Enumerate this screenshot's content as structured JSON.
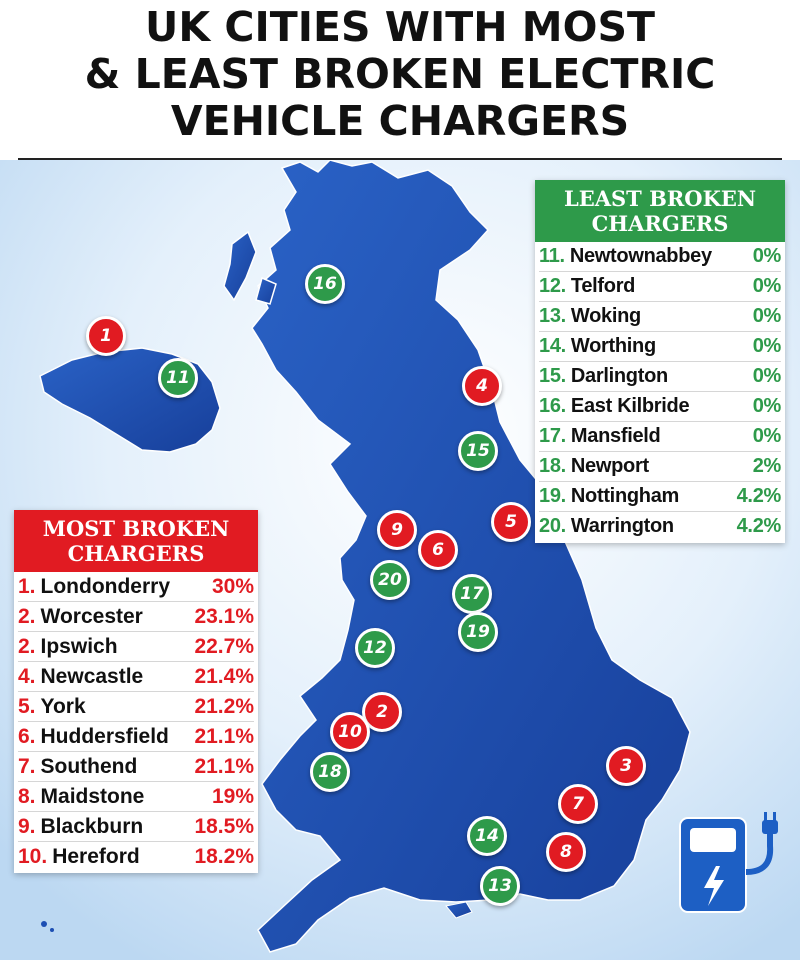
{
  "title_lines": [
    "UK CITIES WITH MOST",
    "& LEAST BROKEN ELECTRIC",
    "VEHICLE CHARGERS"
  ],
  "colors": {
    "red": "#e11b22",
    "green": "#2e9a4a",
    "map_blue": "#1d4fb3",
    "background_blue": "#cfe4f7"
  },
  "most_broken": {
    "heading": [
      "MOST BROKEN",
      "CHARGERS"
    ],
    "items": [
      {
        "rank": "1.",
        "city": "Londonderry",
        "percent": "30%"
      },
      {
        "rank": "2.",
        "city": "Worcester",
        "percent": "23.1%"
      },
      {
        "rank": "2.",
        "city": "Ipswich",
        "percent": "22.7%"
      },
      {
        "rank": "4.",
        "city": "Newcastle",
        "percent": "21.4%"
      },
      {
        "rank": "5.",
        "city": "York",
        "percent": "21.2%"
      },
      {
        "rank": "6.",
        "city": "Huddersfield",
        "percent": "21.1%"
      },
      {
        "rank": "7.",
        "city": "Southend",
        "percent": "21.1%"
      },
      {
        "rank": "8.",
        "city": "Maidstone",
        "percent": "19%"
      },
      {
        "rank": "9.",
        "city": "Blackburn",
        "percent": "18.5%"
      },
      {
        "rank": "10.",
        "city": "Hereford",
        "percent": "18.2%"
      }
    ]
  },
  "least_broken": {
    "heading": [
      "LEAST BROKEN",
      "CHARGERS"
    ],
    "items": [
      {
        "rank": "11.",
        "city": "Newtownabbey",
        "percent": "0%"
      },
      {
        "rank": "12.",
        "city": "Telford",
        "percent": "0%"
      },
      {
        "rank": "13.",
        "city": "Woking",
        "percent": "0%"
      },
      {
        "rank": "14.",
        "city": "Worthing",
        "percent": "0%"
      },
      {
        "rank": "15.",
        "city": "Darlington",
        "percent": "0%"
      },
      {
        "rank": "16.",
        "city": "East Kilbride",
        "percent": "0%"
      },
      {
        "rank": "17.",
        "city": "Mansfield",
        "percent": "0%"
      },
      {
        "rank": "18.",
        "city": "Newport",
        "percent": "2%"
      },
      {
        "rank": "19.",
        "city": "Nottingham",
        "percent": "4.2%"
      },
      {
        "rank": "20.",
        "city": "Warrington",
        "percent": "4.2%"
      }
    ]
  },
  "map_markers": [
    {
      "label": "1",
      "color": "red"
    },
    {
      "label": "2",
      "color": "red"
    },
    {
      "label": "3",
      "color": "red"
    },
    {
      "label": "4",
      "color": "red"
    },
    {
      "label": "5",
      "color": "red"
    },
    {
      "label": "6",
      "color": "red"
    },
    {
      "label": "7",
      "color": "red"
    },
    {
      "label": "8",
      "color": "red"
    },
    {
      "label": "9",
      "color": "red"
    },
    {
      "label": "10",
      "color": "red"
    },
    {
      "label": "11",
      "color": "green"
    },
    {
      "label": "12",
      "color": "green"
    },
    {
      "label": "13",
      "color": "green"
    },
    {
      "label": "14",
      "color": "green"
    },
    {
      "label": "15",
      "color": "green"
    },
    {
      "label": "16",
      "color": "green"
    },
    {
      "label": "17",
      "color": "green"
    },
    {
      "label": "18",
      "color": "green"
    },
    {
      "label": "19",
      "color": "green"
    },
    {
      "label": "20",
      "color": "green"
    }
  ],
  "icon": "ev-charger-icon"
}
